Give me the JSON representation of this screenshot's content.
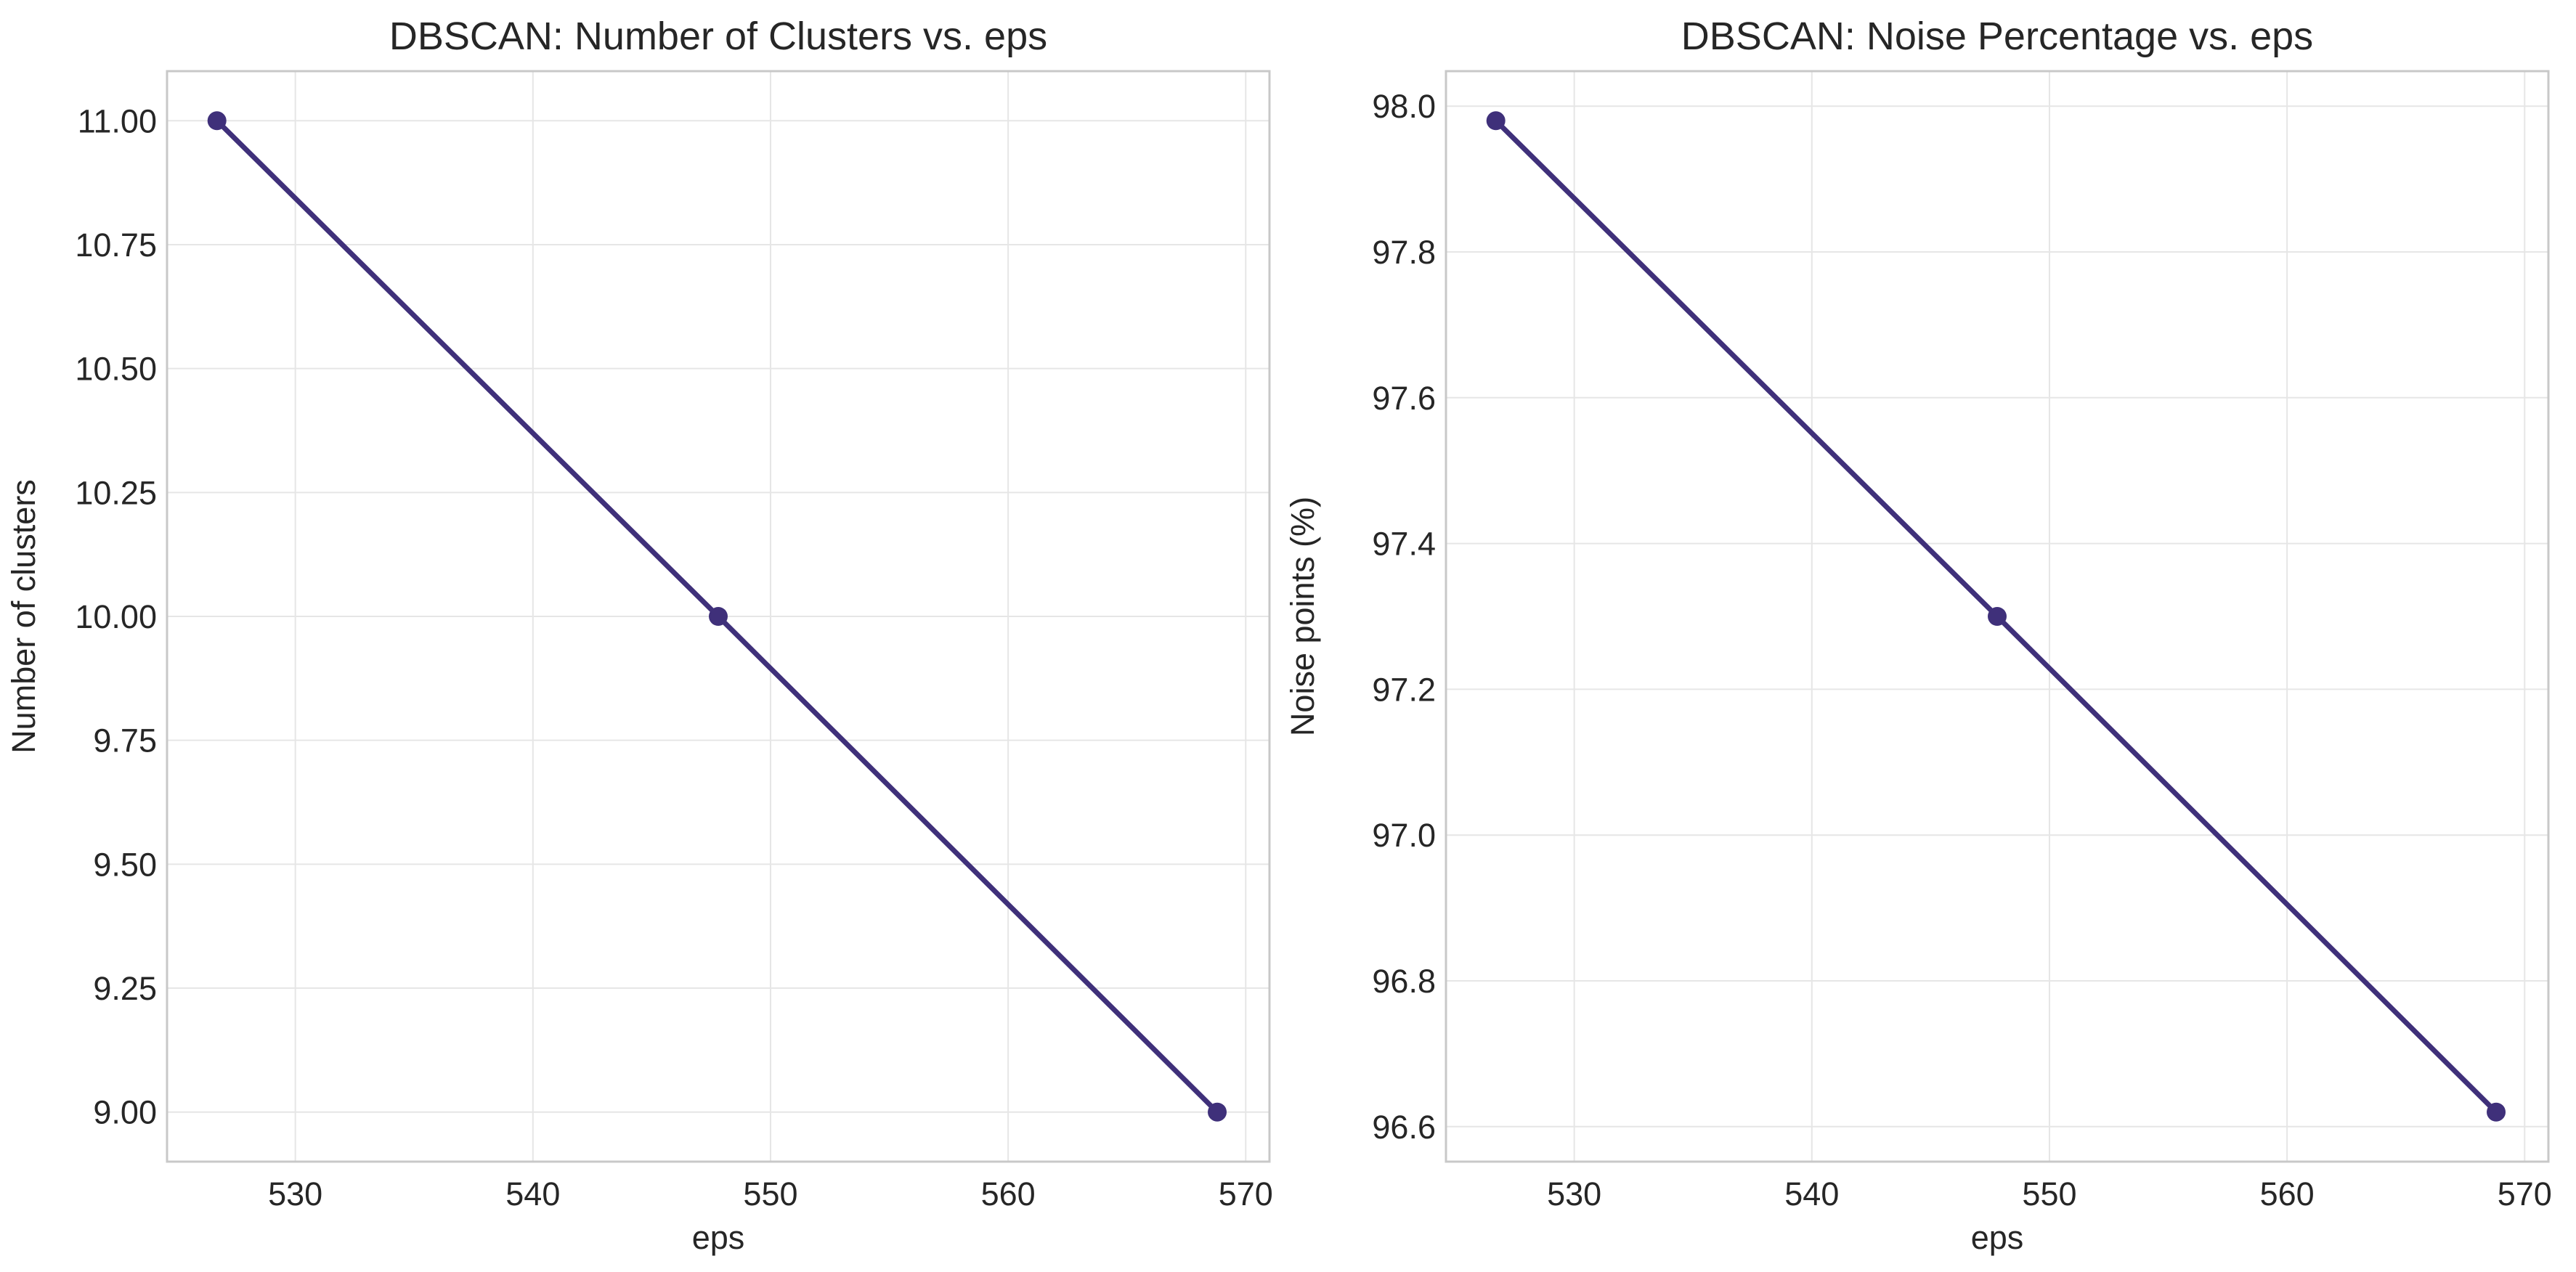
{
  "figure": {
    "background": "#ffffff",
    "line_color": "#3f307a",
    "grid_color": "#e6e6e6",
    "spine_color": "#c8c8c8"
  },
  "chart_data": [
    {
      "type": "line",
      "title": "DBSCAN: Number of Clusters vs. eps",
      "xlabel": "eps",
      "ylabel": "Number of clusters",
      "x": [
        526.7,
        547.8,
        568.8
      ],
      "series": [
        {
          "values": [
            11.0,
            10.0,
            9.0
          ],
          "marker": "circle"
        }
      ],
      "xlim": [
        524.6,
        571.0
      ],
      "ylim": [
        8.9,
        11.1
      ],
      "xticks": [
        530,
        540,
        550,
        560,
        570
      ],
      "yticks": [
        9.0,
        9.25,
        9.5,
        9.75,
        10.0,
        10.25,
        10.5,
        10.75,
        11.0
      ],
      "xtick_labels": [
        "530",
        "540",
        "550",
        "560",
        "570"
      ],
      "ytick_labels": [
        "9.00",
        "9.25",
        "9.50",
        "9.75",
        "10.00",
        "10.25",
        "10.50",
        "10.75",
        "11.00"
      ],
      "grid": true
    },
    {
      "type": "line",
      "title": "DBSCAN: Noise Percentage vs. eps",
      "xlabel": "eps",
      "ylabel": "Noise points (%)",
      "x": [
        526.7,
        547.8,
        568.8
      ],
      "series": [
        {
          "values": [
            97.98,
            97.3,
            96.62
          ],
          "marker": "circle"
        }
      ],
      "xlim": [
        524.6,
        571.0
      ],
      "ylim": [
        96.552,
        98.048
      ],
      "xticks": [
        530,
        540,
        550,
        560,
        570
      ],
      "yticks": [
        96.6,
        96.8,
        97.0,
        97.2,
        97.4,
        97.6,
        97.8,
        98.0
      ],
      "xtick_labels": [
        "530",
        "540",
        "550",
        "560",
        "570"
      ],
      "ytick_labels": [
        "96.6",
        "96.8",
        "97.0",
        "97.2",
        "97.4",
        "97.6",
        "97.8",
        "98.0"
      ],
      "grid": true
    }
  ]
}
